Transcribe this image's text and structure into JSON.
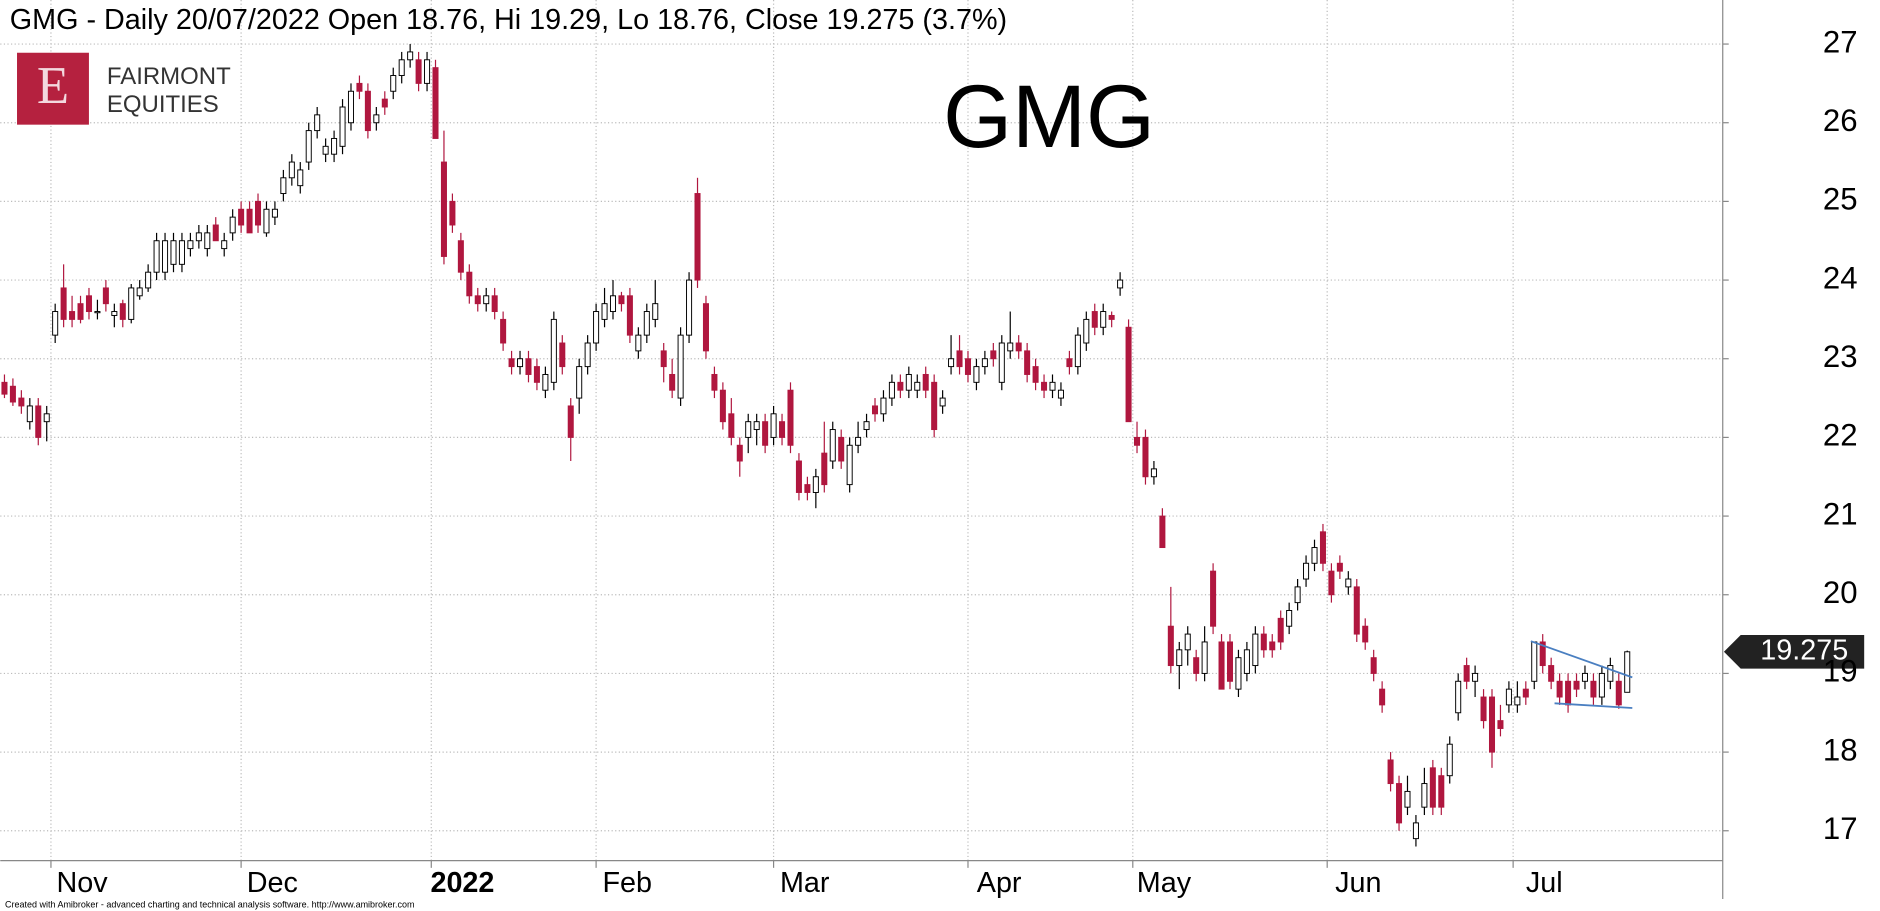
{
  "chart_data": {
    "type": "candlestick",
    "title": "GMG - Daily 20/07/2022 Open 18.76, Hi 19.29, Lo 18.76, Close 19.275 (3.7%)",
    "annotation": "GMG",
    "logo": {
      "letter": "E",
      "line1": "FAIRMONT",
      "line2": "EQUITIES"
    },
    "footer": "Created with Amibroker - advanced charting and technical analysis software. http://www.amibroker.com",
    "up_color": "#ffffff",
    "down_color": "#b0173f",
    "trendline_color": "#4a7fc1",
    "grid": true,
    "xlim": [
      -0.5,
      203.3
    ],
    "ylim": [
      16.62,
      27.56
    ],
    "yticks": [
      17,
      18,
      19,
      20,
      21,
      22,
      23,
      24,
      25,
      26,
      27
    ],
    "xticks": [
      {
        "value": 5.5,
        "label": "Nov"
      },
      {
        "value": 28,
        "label": "Dec"
      },
      {
        "value": 50.5,
        "label": "2022"
      },
      {
        "value": 70,
        "label": "Feb"
      },
      {
        "value": 91,
        "label": "Mar"
      },
      {
        "value": 114,
        "label": "Apr"
      },
      {
        "value": 133.5,
        "label": "May"
      },
      {
        "value": 156.5,
        "label": "Jun"
      },
      {
        "value": 178.5,
        "label": "Jul"
      }
    ],
    "trendlines": [
      {
        "x": [
          180.6,
          192.6
        ],
        "y": [
          19.41,
          18.95
        ]
      },
      {
        "x": [
          183.4,
          192.6
        ],
        "y": [
          18.62,
          18.56
        ]
      }
    ],
    "candles": [
      [
        22.7,
        22.8,
        22.5,
        22.55
      ],
      [
        22.65,
        22.75,
        22.4,
        22.45
      ],
      [
        22.5,
        22.6,
        22.3,
        22.4
      ],
      [
        22.2,
        22.5,
        22.1,
        22.4
      ],
      [
        22.4,
        22.5,
        21.9,
        22.0
      ],
      [
        22.2,
        22.4,
        21.95,
        22.3
      ],
      [
        23.3,
        23.7,
        23.2,
        23.6
      ],
      [
        23.9,
        24.2,
        23.4,
        23.5
      ],
      [
        23.6,
        23.8,
        23.4,
        23.5
      ],
      [
        23.7,
        23.8,
        23.45,
        23.5
      ],
      [
        23.8,
        23.9,
        23.5,
        23.6
      ],
      [
        23.6,
        23.75,
        23.5,
        23.6
      ],
      [
        23.9,
        24.0,
        23.6,
        23.7
      ],
      [
        23.55,
        23.7,
        23.4,
        23.6
      ],
      [
        23.7,
        23.75,
        23.4,
        23.5
      ],
      [
        23.5,
        23.95,
        23.45,
        23.9
      ],
      [
        23.8,
        24.0,
        23.75,
        23.9
      ],
      [
        23.9,
        24.2,
        23.85,
        24.1
      ],
      [
        24.1,
        24.6,
        24.0,
        24.5
      ],
      [
        24.1,
        24.6,
        24.0,
        24.5
      ],
      [
        24.2,
        24.6,
        24.1,
        24.5
      ],
      [
        24.2,
        24.6,
        24.1,
        24.5
      ],
      [
        24.4,
        24.6,
        24.3,
        24.5
      ],
      [
        24.5,
        24.7,
        24.4,
        24.6
      ],
      [
        24.4,
        24.7,
        24.3,
        24.6
      ],
      [
        24.7,
        24.8,
        24.5,
        24.5
      ],
      [
        24.4,
        24.6,
        24.3,
        24.5
      ],
      [
        24.6,
        24.9,
        24.5,
        24.8
      ],
      [
        24.9,
        25.0,
        24.6,
        24.7
      ],
      [
        24.9,
        25.0,
        24.6,
        24.6
      ],
      [
        25.0,
        25.1,
        24.6,
        24.7
      ],
      [
        24.6,
        25.0,
        24.55,
        24.9
      ],
      [
        24.8,
        25.0,
        24.7,
        24.9
      ],
      [
        25.1,
        25.4,
        25.0,
        25.3
      ],
      [
        25.3,
        25.6,
        25.2,
        25.5
      ],
      [
        25.2,
        25.5,
        25.1,
        25.4
      ],
      [
        25.5,
        26.0,
        25.4,
        25.9
      ],
      [
        25.9,
        26.2,
        25.8,
        26.1
      ],
      [
        25.6,
        25.8,
        25.5,
        25.7
      ],
      [
        25.6,
        25.9,
        25.5,
        25.8
      ],
      [
        25.7,
        26.3,
        25.6,
        26.2
      ],
      [
        26.0,
        26.5,
        25.9,
        26.4
      ],
      [
        26.5,
        26.6,
        26.3,
        26.4
      ],
      [
        26.4,
        26.5,
        25.8,
        25.9
      ],
      [
        26.0,
        26.2,
        25.9,
        26.1
      ],
      [
        26.3,
        26.4,
        26.1,
        26.2
      ],
      [
        26.4,
        26.7,
        26.3,
        26.6
      ],
      [
        26.6,
        26.9,
        26.5,
        26.8
      ],
      [
        26.8,
        27.0,
        26.7,
        26.9
      ],
      [
        26.8,
        26.9,
        26.4,
        26.5
      ],
      [
        26.5,
        26.9,
        26.4,
        26.8
      ],
      [
        26.7,
        26.8,
        25.8,
        25.8
      ],
      [
        25.5,
        25.9,
        24.2,
        24.3
      ],
      [
        25.0,
        25.1,
        24.6,
        24.7
      ],
      [
        24.5,
        24.6,
        24.0,
        24.1
      ],
      [
        24.1,
        24.2,
        23.7,
        23.8
      ],
      [
        23.8,
        23.9,
        23.6,
        23.7
      ],
      [
        23.7,
        23.9,
        23.6,
        23.8
      ],
      [
        23.8,
        23.9,
        23.5,
        23.6
      ],
      [
        23.5,
        23.6,
        23.1,
        23.2
      ],
      [
        23.0,
        23.1,
        22.8,
        22.9
      ],
      [
        22.9,
        23.1,
        22.8,
        23.0
      ],
      [
        23.0,
        23.1,
        22.7,
        22.8
      ],
      [
        22.9,
        23.0,
        22.6,
        22.7
      ],
      [
        22.6,
        22.9,
        22.5,
        22.8
      ],
      [
        22.7,
        23.6,
        22.6,
        23.5
      ],
      [
        23.2,
        23.3,
        22.8,
        22.9
      ],
      [
        22.4,
        22.5,
        21.7,
        22.0
      ],
      [
        22.5,
        23.0,
        22.3,
        22.9
      ],
      [
        22.9,
        23.3,
        22.8,
        23.2
      ],
      [
        23.2,
        23.7,
        23.1,
        23.6
      ],
      [
        23.5,
        23.9,
        23.4,
        23.7
      ],
      [
        23.6,
        24.0,
        23.5,
        23.8
      ],
      [
        23.8,
        23.85,
        23.6,
        23.7
      ],
      [
        23.8,
        23.9,
        23.2,
        23.3
      ],
      [
        23.1,
        23.4,
        23.0,
        23.3
      ],
      [
        23.3,
        23.7,
        23.2,
        23.6
      ],
      [
        23.5,
        24.0,
        23.4,
        23.7
      ],
      [
        23.1,
        23.2,
        22.7,
        22.9
      ],
      [
        22.8,
        23.0,
        22.5,
        22.6
      ],
      [
        22.5,
        23.4,
        22.4,
        23.3
      ],
      [
        23.3,
        24.1,
        23.2,
        24.0
      ],
      [
        25.1,
        25.3,
        23.9,
        24.0
      ],
      [
        23.7,
        23.8,
        23.0,
        23.1
      ],
      [
        22.8,
        22.9,
        22.5,
        22.6
      ],
      [
        22.6,
        22.7,
        22.1,
        22.2
      ],
      [
        22.3,
        22.5,
        21.9,
        22.0
      ],
      [
        21.9,
        22.0,
        21.5,
        21.7
      ],
      [
        22.0,
        22.3,
        21.8,
        22.2
      ],
      [
        22.1,
        22.3,
        21.9,
        22.2
      ],
      [
        22.2,
        22.3,
        21.8,
        21.9
      ],
      [
        22.0,
        22.4,
        21.9,
        22.3
      ],
      [
        22.2,
        22.3,
        21.9,
        22.0
      ],
      [
        22.6,
        22.7,
        21.8,
        21.9
      ],
      [
        21.7,
        21.8,
        21.2,
        21.3
      ],
      [
        21.4,
        21.5,
        21.2,
        21.3
      ],
      [
        21.3,
        21.6,
        21.1,
        21.5
      ],
      [
        21.8,
        22.2,
        21.3,
        21.4
      ],
      [
        21.7,
        22.2,
        21.6,
        22.1
      ],
      [
        22.0,
        22.1,
        21.6,
        21.7
      ],
      [
        21.4,
        22.0,
        21.3,
        21.9
      ],
      [
        21.9,
        22.2,
        21.8,
        22.0
      ],
      [
        22.1,
        22.3,
        22.0,
        22.2
      ],
      [
        22.4,
        22.5,
        22.2,
        22.3
      ],
      [
        22.3,
        22.6,
        22.2,
        22.5
      ],
      [
        22.5,
        22.8,
        22.4,
        22.7
      ],
      [
        22.7,
        22.8,
        22.5,
        22.6
      ],
      [
        22.6,
        22.9,
        22.5,
        22.8
      ],
      [
        22.6,
        22.8,
        22.5,
        22.7
      ],
      [
        22.8,
        22.9,
        22.5,
        22.6
      ],
      [
        22.7,
        22.8,
        22.0,
        22.1
      ],
      [
        22.4,
        22.6,
        22.3,
        22.5
      ],
      [
        22.9,
        23.3,
        22.8,
        23.0
      ],
      [
        23.1,
        23.3,
        22.8,
        22.9
      ],
      [
        23.0,
        23.1,
        22.7,
        22.8
      ],
      [
        22.7,
        23.0,
        22.6,
        22.9
      ],
      [
        22.9,
        23.1,
        22.8,
        23.0
      ],
      [
        23.1,
        23.2,
        22.9,
        23.0
      ],
      [
        22.7,
        23.3,
        22.6,
        23.2
      ],
      [
        23.1,
        23.6,
        23.0,
        23.2
      ],
      [
        23.2,
        23.3,
        23.0,
        23.1
      ],
      [
        23.1,
        23.2,
        22.7,
        22.8
      ],
      [
        22.9,
        23.0,
        22.6,
        22.7
      ],
      [
        22.7,
        22.8,
        22.5,
        22.6
      ],
      [
        22.6,
        22.8,
        22.5,
        22.7
      ],
      [
        22.5,
        22.7,
        22.4,
        22.6
      ],
      [
        23.0,
        23.1,
        22.8,
        22.9
      ],
      [
        22.9,
        23.4,
        22.8,
        23.3
      ],
      [
        23.2,
        23.6,
        23.1,
        23.5
      ],
      [
        23.6,
        23.7,
        23.3,
        23.4
      ],
      [
        23.4,
        23.7,
        23.3,
        23.6
      ],
      [
        23.55,
        23.6,
        23.4,
        23.5
      ],
      [
        23.9,
        24.1,
        23.8,
        24.0
      ],
      [
        23.4,
        23.5,
        22.2,
        22.2
      ],
      [
        22.0,
        22.2,
        21.8,
        21.9
      ],
      [
        22.0,
        22.1,
        21.4,
        21.5
      ],
      [
        21.5,
        21.7,
        21.4,
        21.6
      ],
      [
        21.0,
        21.1,
        20.6,
        20.6
      ],
      [
        19.6,
        20.1,
        19.0,
        19.1
      ],
      [
        19.1,
        19.4,
        18.8,
        19.3
      ],
      [
        19.3,
        19.6,
        19.1,
        19.5
      ],
      [
        19.2,
        19.3,
        18.9,
        19.0
      ],
      [
        19.0,
        19.6,
        18.9,
        19.4
      ],
      [
        20.3,
        20.4,
        19.5,
        19.6
      ],
      [
        19.4,
        19.5,
        18.8,
        18.8
      ],
      [
        19.4,
        19.5,
        18.8,
        18.9
      ],
      [
        18.8,
        19.3,
        18.7,
        19.2
      ],
      [
        19.0,
        19.4,
        18.9,
        19.3
      ],
      [
        19.1,
        19.6,
        19.0,
        19.5
      ],
      [
        19.5,
        19.6,
        19.2,
        19.3
      ],
      [
        19.4,
        19.5,
        19.2,
        19.3
      ],
      [
        19.7,
        19.8,
        19.3,
        19.4
      ],
      [
        19.6,
        19.9,
        19.5,
        19.8
      ],
      [
        19.9,
        20.2,
        19.8,
        20.1
      ],
      [
        20.2,
        20.5,
        20.1,
        20.4
      ],
      [
        20.4,
        20.7,
        20.3,
        20.6
      ],
      [
        20.8,
        20.9,
        20.3,
        20.4
      ],
      [
        20.3,
        20.4,
        19.9,
        20.0
      ],
      [
        20.4,
        20.5,
        20.2,
        20.3
      ],
      [
        20.1,
        20.3,
        20.0,
        20.2
      ],
      [
        20.1,
        20.2,
        19.4,
        19.5
      ],
      [
        19.6,
        19.7,
        19.3,
        19.4
      ],
      [
        19.2,
        19.3,
        18.9,
        19.0
      ],
      [
        18.8,
        18.9,
        18.5,
        18.6
      ],
      [
        17.9,
        18.0,
        17.5,
        17.6
      ],
      [
        17.6,
        17.7,
        17.0,
        17.1
      ],
      [
        17.3,
        17.7,
        17.2,
        17.5
      ],
      [
        16.9,
        17.2,
        16.8,
        17.1
      ],
      [
        17.3,
        17.8,
        17.2,
        17.6
      ],
      [
        17.8,
        17.9,
        17.2,
        17.3
      ],
      [
        17.7,
        17.8,
        17.2,
        17.3
      ],
      [
        17.7,
        18.2,
        17.6,
        18.1
      ],
      [
        18.5,
        19.0,
        18.4,
        18.9
      ],
      [
        19.1,
        19.2,
        18.8,
        18.9
      ],
      [
        18.9,
        19.1,
        18.7,
        19.0
      ],
      [
        18.7,
        18.8,
        18.3,
        18.4
      ],
      [
        18.7,
        18.8,
        17.8,
        18.0
      ],
      [
        18.4,
        18.6,
        18.2,
        18.3
      ],
      [
        18.6,
        18.9,
        18.5,
        18.8
      ],
      [
        18.6,
        18.9,
        18.5,
        18.7
      ],
      [
        18.8,
        18.9,
        18.6,
        18.7
      ],
      [
        18.9,
        19.4,
        18.8,
        19.4
      ],
      [
        19.4,
        19.5,
        19.0,
        19.1
      ],
      [
        19.1,
        19.2,
        18.8,
        18.9
      ],
      [
        18.9,
        19.0,
        18.6,
        18.7
      ],
      [
        18.9,
        19.0,
        18.5,
        18.6
      ],
      [
        18.9,
        19.0,
        18.7,
        18.8
      ],
      [
        18.9,
        19.1,
        18.8,
        19.0
      ],
      [
        18.9,
        19.0,
        18.6,
        18.7
      ],
      [
        18.7,
        19.1,
        18.6,
        19.0
      ],
      [
        18.9,
        19.2,
        18.8,
        19.1
      ],
      [
        18.9,
        19.0,
        18.55,
        18.6
      ],
      [
        18.76,
        19.29,
        18.76,
        19.275
      ]
    ]
  }
}
